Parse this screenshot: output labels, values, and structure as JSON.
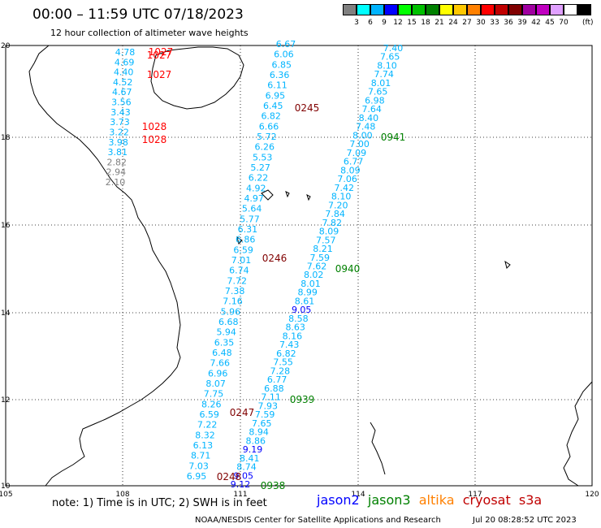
{
  "header": {
    "title": "00:00 – 11:59 UTC 07/18/2023",
    "subtitle": "12 hour collection of altimeter wave heights"
  },
  "colorbar": {
    "swatches": [
      "#808080",
      "#00ffff",
      "#00b4ff",
      "#0000ff",
      "#00ff00",
      "#00c000",
      "#008000",
      "#ffff00",
      "#ffc800",
      "#ff8000",
      "#ff0000",
      "#c00000",
      "#800000",
      "#a000a0",
      "#c000c0",
      "#e0a0ff",
      "#ffffff",
      "#000000"
    ],
    "labels": [
      "3",
      "6",
      "9",
      "12",
      "15",
      "18",
      "21",
      "24",
      "27",
      "30",
      "33",
      "36",
      "39",
      "42",
      "45",
      "70"
    ],
    "unit": "(ft)"
  },
  "axes": {
    "lon_labels": [
      "105",
      "108",
      "111",
      "114",
      "117",
      "120"
    ],
    "lat_labels": [
      "20",
      "18",
      "16",
      "14",
      "12",
      "10"
    ]
  },
  "passes": [
    {
      "label": "1027",
      "color": "#ff0000"
    },
    {
      "label": "1027",
      "color": "#ff0000"
    },
    {
      "label": "1027",
      "color": "#ff0000"
    },
    {
      "label": "1028",
      "color": "#ff0000"
    },
    {
      "label": "1028",
      "color": "#ff0000"
    },
    {
      "label": "0245",
      "color": "#800000"
    },
    {
      "label": "0941",
      "color": "#008000"
    },
    {
      "label": "0246",
      "color": "#800000"
    },
    {
      "label": "0940",
      "color": "#008000"
    },
    {
      "label": "0939",
      "color": "#008000"
    },
    {
      "label": "0247",
      "color": "#800000"
    },
    {
      "label": "0248",
      "color": "#800000"
    },
    {
      "label": "0938",
      "color": "#008000"
    }
  ],
  "tracks": {
    "s3a_nearshore": [
      {
        "v": "4.78",
        "c": "#00b4ff"
      },
      {
        "v": "4.69",
        "c": "#00b4ff"
      },
      {
        "v": "4.40",
        "c": "#00b4ff"
      },
      {
        "v": "4.52",
        "c": "#00b4ff"
      },
      {
        "v": "4.67",
        "c": "#00b4ff"
      },
      {
        "v": "3.56",
        "c": "#00b4ff"
      },
      {
        "v": "3.43",
        "c": "#00b4ff"
      },
      {
        "v": "3.73",
        "c": "#00b4ff"
      },
      {
        "v": "3.22",
        "c": "#00b4ff"
      },
      {
        "v": "3.98",
        "c": "#00b4ff"
      },
      {
        "v": "3.81",
        "c": "#00b4ff"
      },
      {
        "v": "2.82",
        "c": "#808080"
      },
      {
        "v": "2.94",
        "c": "#808080"
      },
      {
        "v": "2.10",
        "c": "#808080"
      }
    ],
    "jason3_a": [
      {
        "v": "7.40",
        "c": "#00b4ff"
      },
      {
        "v": "7.65",
        "c": "#00b4ff"
      },
      {
        "v": "8.10",
        "c": "#00b4ff"
      },
      {
        "v": "7.74",
        "c": "#00b4ff"
      },
      {
        "v": "8.01",
        "c": "#00b4ff"
      },
      {
        "v": "7.65",
        "c": "#00b4ff"
      },
      {
        "v": "6.98",
        "c": "#00b4ff"
      },
      {
        "v": "7.64",
        "c": "#00b4ff"
      },
      {
        "v": "8.40",
        "c": "#00b4ff"
      },
      {
        "v": "7.48",
        "c": "#00b4ff"
      },
      {
        "v": "8.00",
        "c": "#00b4ff"
      },
      {
        "v": "7.00",
        "c": "#00b4ff"
      },
      {
        "v": "7.09",
        "c": "#00b4ff"
      },
      {
        "v": "6.77",
        "c": "#00b4ff"
      },
      {
        "v": "8.09",
        "c": "#00b4ff"
      },
      {
        "v": "7.06",
        "c": "#00b4ff"
      },
      {
        "v": "7.42",
        "c": "#00b4ff"
      },
      {
        "v": "8.10",
        "c": "#00b4ff"
      },
      {
        "v": "7.20",
        "c": "#00b4ff"
      },
      {
        "v": "7.84",
        "c": "#00b4ff"
      },
      {
        "v": "7.82",
        "c": "#00b4ff"
      },
      {
        "v": "8.09",
        "c": "#00b4ff"
      },
      {
        "v": "7.57",
        "c": "#00b4ff"
      },
      {
        "v": "8.21",
        "c": "#00b4ff"
      },
      {
        "v": "7.59",
        "c": "#00b4ff"
      },
      {
        "v": "7.62",
        "c": "#00b4ff"
      },
      {
        "v": "8.02",
        "c": "#00b4ff"
      },
      {
        "v": "8.01",
        "c": "#00b4ff"
      },
      {
        "v": "8.99",
        "c": "#00b4ff"
      },
      {
        "v": "8.61",
        "c": "#00b4ff"
      },
      {
        "v": "9.05",
        "c": "#0000ff"
      },
      {
        "v": "8.58",
        "c": "#00b4ff"
      },
      {
        "v": "8.63",
        "c": "#00b4ff"
      },
      {
        "v": "8.16",
        "c": "#00b4ff"
      },
      {
        "v": "7.43",
        "c": "#00b4ff"
      },
      {
        "v": "6.82",
        "c": "#00b4ff"
      },
      {
        "v": "7.55",
        "c": "#00b4ff"
      },
      {
        "v": "7.28",
        "c": "#00b4ff"
      },
      {
        "v": "6.77",
        "c": "#00b4ff"
      },
      {
        "v": "6.88",
        "c": "#00b4ff"
      },
      {
        "v": "7.11",
        "c": "#00b4ff"
      },
      {
        "v": "7.93",
        "c": "#00b4ff"
      },
      {
        "v": "7.59",
        "c": "#00b4ff"
      },
      {
        "v": "7.65",
        "c": "#00b4ff"
      },
      {
        "v": "8.94",
        "c": "#00b4ff"
      },
      {
        "v": "8.86",
        "c": "#00b4ff"
      },
      {
        "v": "9.19",
        "c": "#0000ff"
      },
      {
        "v": "8.41",
        "c": "#00b4ff"
      },
      {
        "v": "8.74",
        "c": "#00b4ff"
      },
      {
        "v": "9.05",
        "c": "#0000ff"
      },
      {
        "v": "9.12",
        "c": "#0000ff"
      }
    ],
    "cryosat_a": [
      {
        "v": "6.67",
        "c": "#00b4ff"
      },
      {
        "v": "6.06",
        "c": "#00b4ff"
      },
      {
        "v": "6.85",
        "c": "#00b4ff"
      },
      {
        "v": "6.36",
        "c": "#00b4ff"
      },
      {
        "v": "6.11",
        "c": "#00b4ff"
      },
      {
        "v": "6.95",
        "c": "#00b4ff"
      },
      {
        "v": "6.45",
        "c": "#00b4ff"
      },
      {
        "v": "6.82",
        "c": "#00b4ff"
      },
      {
        "v": "6.66",
        "c": "#00b4ff"
      },
      {
        "v": "5.72",
        "c": "#00b4ff"
      },
      {
        "v": "6.26",
        "c": "#00b4ff"
      },
      {
        "v": "5.53",
        "c": "#00b4ff"
      },
      {
        "v": "5.27",
        "c": "#00b4ff"
      },
      {
        "v": "6.22",
        "c": "#00b4ff"
      },
      {
        "v": "4.92",
        "c": "#00b4ff"
      },
      {
        "v": "4.97",
        "c": "#00b4ff"
      },
      {
        "v": "5.64",
        "c": "#00b4ff"
      },
      {
        "v": "5.77",
        "c": "#00b4ff"
      },
      {
        "v": "6.31",
        "c": "#00b4ff"
      },
      {
        "v": "6.86",
        "c": "#00b4ff"
      },
      {
        "v": "6.59",
        "c": "#00b4ff"
      },
      {
        "v": "7.01",
        "c": "#00b4ff"
      },
      {
        "v": "6.74",
        "c": "#00b4ff"
      },
      {
        "v": "7.72",
        "c": "#00b4ff"
      },
      {
        "v": "7.38",
        "c": "#00b4ff"
      },
      {
        "v": "7.16",
        "c": "#00b4ff"
      },
      {
        "v": "5.96",
        "c": "#00b4ff"
      },
      {
        "v": "6.68",
        "c": "#00b4ff"
      },
      {
        "v": "5.94",
        "c": "#00b4ff"
      },
      {
        "v": "6.35",
        "c": "#00b4ff"
      },
      {
        "v": "6.48",
        "c": "#00b4ff"
      },
      {
        "v": "7.66",
        "c": "#00b4ff"
      },
      {
        "v": "6.96",
        "c": "#00b4ff"
      },
      {
        "v": "8.07",
        "c": "#00b4ff"
      },
      {
        "v": "7.75",
        "c": "#00b4ff"
      },
      {
        "v": "8.26",
        "c": "#00b4ff"
      },
      {
        "v": "6.59",
        "c": "#00b4ff"
      },
      {
        "v": "7.22",
        "c": "#00b4ff"
      },
      {
        "v": "8.32",
        "c": "#00b4ff"
      },
      {
        "v": "6.13",
        "c": "#00b4ff"
      },
      {
        "v": "8.71",
        "c": "#00b4ff"
      },
      {
        "v": "7.03",
        "c": "#00b4ff"
      },
      {
        "v": "6.95",
        "c": "#00b4ff"
      }
    ]
  },
  "note": "note: 1) Time is in UTC; 2) SWH is in feet",
  "legend": [
    {
      "label": "jason2",
      "color": "#0000ff"
    },
    {
      "label": "jason3",
      "color": "#008000"
    },
    {
      "label": "altika",
      "color": "#ff8000"
    },
    {
      "label": "cryosat",
      "color": "#c00000"
    },
    {
      "label": "s3a",
      "color": "#c00000"
    }
  ],
  "footer": {
    "source": "NOAA/NESDIS Center for Satellite Applications and Research",
    "timestamp": "Jul 20 08:28:52 UTC 2023"
  }
}
